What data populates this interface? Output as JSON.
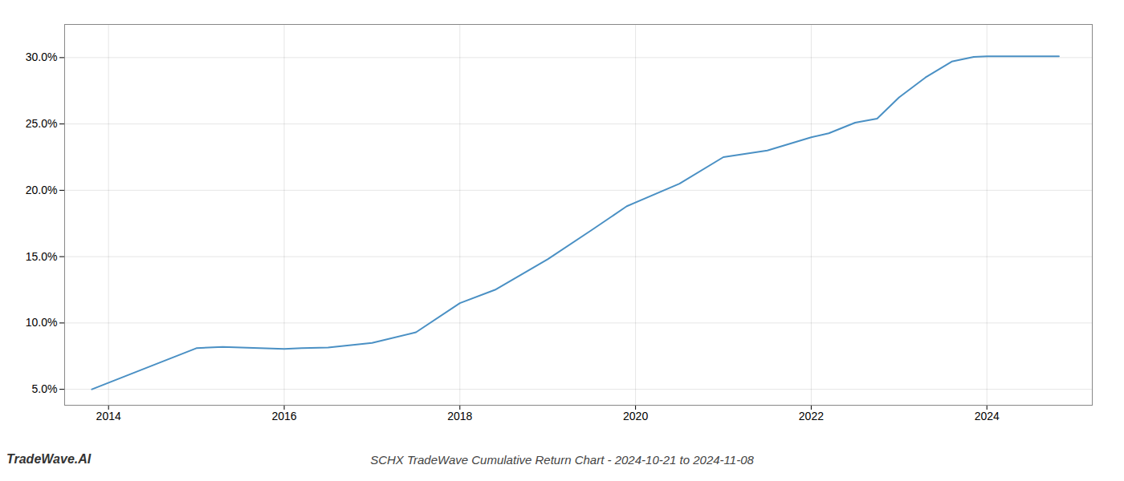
{
  "chart_data": {
    "type": "line",
    "title": "SCHX TradeWave Cumulative Return Chart - 2024-10-21 to 2024-11-08",
    "annotations": [
      "TradeWave.AI"
    ],
    "x": [
      2013.81,
      2014.5,
      2015.0,
      2015.3,
      2016.0,
      2016.2,
      2016.5,
      2017.0,
      2017.5,
      2018.0,
      2018.4,
      2019.0,
      2019.5,
      2019.9,
      2020.5,
      2021.0,
      2021.5,
      2022.0,
      2022.2,
      2022.5,
      2022.75,
      2023.0,
      2023.3,
      2023.6,
      2023.85,
      2024.0,
      2024.5,
      2024.82
    ],
    "values": [
      5.0,
      6.8,
      8.1,
      8.2,
      8.05,
      8.1,
      8.15,
      8.5,
      9.3,
      11.5,
      12.5,
      14.8,
      17.0,
      18.8,
      20.5,
      22.5,
      23.0,
      24.0,
      24.3,
      25.1,
      25.4,
      27.0,
      28.5,
      29.7,
      30.05,
      30.1,
      30.1,
      30.1
    ],
    "color": "#4a90c4",
    "xlim": [
      2013.5,
      2025.2
    ],
    "ylim": [
      3.8,
      32.5
    ],
    "xticks": [
      2014,
      2016,
      2018,
      2020,
      2022,
      2024
    ],
    "yticks": [
      {
        "value": 5.0,
        "label": "5.0%"
      },
      {
        "value": 10.0,
        "label": "10.0%"
      },
      {
        "value": 15.0,
        "label": "15.0%"
      },
      {
        "value": 20.0,
        "label": "20.0%"
      },
      {
        "value": 25.0,
        "label": "25.0%"
      },
      {
        "value": 30.0,
        "label": "30.0%"
      }
    ],
    "grid": true
  }
}
